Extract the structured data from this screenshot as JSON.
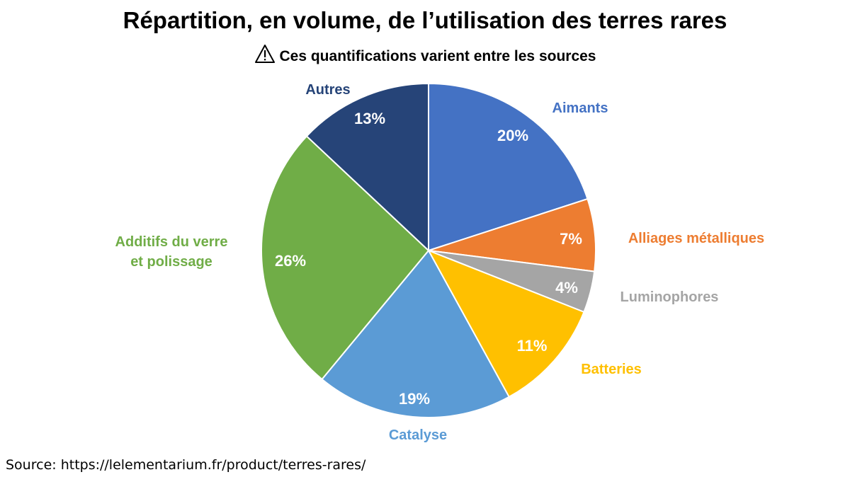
{
  "chart_data": {
    "type": "pie",
    "title": "Répartition, en volume, de l’utilisation des terres rares",
    "subtitle": "Ces quantifications varient entre les sources",
    "subtitle_icon": "warning-triangle-icon",
    "start": "top",
    "direction": "clockwise",
    "slices": [
      {
        "label": "Aimants",
        "value": 20,
        "value_label": "20%",
        "color": "#4472C4"
      },
      {
        "label": "Alliages métalliques",
        "value": 7,
        "value_label": "7%",
        "color": "#ED7D31"
      },
      {
        "label": "Luminophores",
        "value": 4,
        "value_label": "4%",
        "color": "#A5A5A5"
      },
      {
        "label": "Batteries",
        "value": 11,
        "value_label": "11%",
        "color": "#FFC000"
      },
      {
        "label": "Catalyse",
        "value": 19,
        "value_label": "19%",
        "color": "#5B9BD5"
      },
      {
        "label": "Additifs du verre\net polissage",
        "value": 26,
        "value_label": "26%",
        "color": "#70AD47"
      },
      {
        "label": "Autres",
        "value": 13,
        "value_label": "13%",
        "color": "#264478"
      }
    ]
  },
  "source": "Source: https://lelementarium.fr/product/terres-rares/"
}
